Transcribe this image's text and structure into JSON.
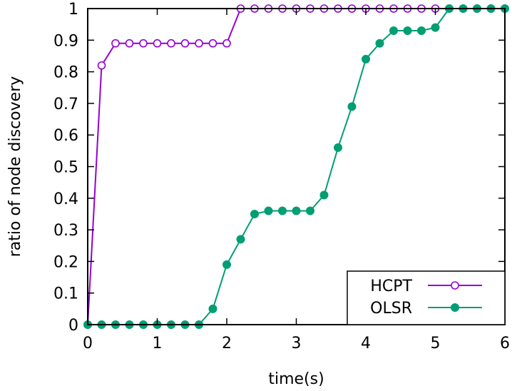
{
  "chart_data": {
    "type": "line",
    "xlabel": "time(s)",
    "ylabel": "ratio of node discovery",
    "xlim": [
      0,
      6
    ],
    "ylim": [
      0,
      1
    ],
    "x_ticks": [
      "0",
      "1",
      "2",
      "3",
      "4",
      "5",
      "6"
    ],
    "y_ticks": [
      "0",
      "0.1",
      "0.2",
      "0.3",
      "0.4",
      "0.5",
      "0.6",
      "0.7",
      "0.8",
      "0.9",
      "1"
    ],
    "grid": false,
    "legend_position": "bottom-right",
    "series": [
      {
        "name": "HCPT",
        "color": "#9400d3",
        "marker": "open-circle",
        "x": [
          0,
          0.2,
          0.4,
          0.6,
          0.8,
          1.0,
          1.2,
          1.4,
          1.6,
          1.8,
          2.0,
          2.2,
          2.4,
          2.6,
          2.8,
          3.0,
          3.2,
          3.4,
          3.6,
          3.8,
          4.0,
          4.2,
          4.4,
          4.6,
          4.8,
          5.0,
          5.2,
          5.4,
          5.6,
          5.8,
          6.0
        ],
        "y": [
          0,
          0.82,
          0.89,
          0.89,
          0.89,
          0.89,
          0.89,
          0.89,
          0.89,
          0.89,
          0.89,
          1,
          1,
          1,
          1,
          1,
          1,
          1,
          1,
          1,
          1,
          1,
          1,
          1,
          1,
          1,
          1,
          1,
          1,
          1,
          1
        ]
      },
      {
        "name": "OLSR",
        "color": "#009e73",
        "marker": "filled-circle",
        "x": [
          0,
          0.2,
          0.4,
          0.6,
          0.8,
          1.0,
          1.2,
          1.4,
          1.6,
          1.8,
          2.0,
          2.2,
          2.4,
          2.6,
          2.8,
          3.0,
          3.2,
          3.4,
          3.6,
          3.8,
          4.0,
          4.2,
          4.4,
          4.6,
          4.8,
          5.0,
          5.2,
          5.4,
          5.6,
          5.8,
          6.0
        ],
        "y": [
          0,
          0,
          0,
          0,
          0,
          0,
          0,
          0,
          0,
          0.05,
          0.19,
          0.27,
          0.35,
          0.36,
          0.36,
          0.36,
          0.36,
          0.41,
          0.56,
          0.69,
          0.84,
          0.89,
          0.93,
          0.93,
          0.93,
          0.94,
          1,
          1,
          1,
          1,
          1
        ]
      }
    ]
  }
}
